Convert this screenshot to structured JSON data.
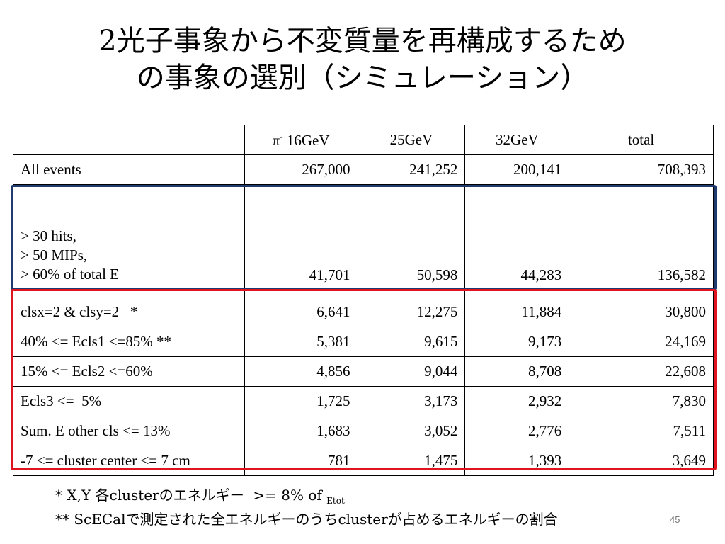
{
  "title": {
    "line1": "2光子事象から不変質量を再構成するため",
    "line2": "の事象の選別（シミュレーション）"
  },
  "table": {
    "headers": [
      "",
      "π",
      "16GeV",
      "25GeV",
      "32GeV",
      "total"
    ],
    "header_pi_sup": "-",
    "rows": [
      {
        "label": "All events",
        "values": [
          "267,000",
          "241,252",
          "200,141",
          "708,393"
        ]
      },
      {
        "label_lines": [
          "> 30 hits,",
          "> 50 MIPs,",
          "> 60% of  total E"
        ],
        "values": [
          "41,701",
          "50,598",
          "44,283",
          "136,582"
        ]
      },
      {
        "label": "clsx=2 & clsy=2   *",
        "values": [
          "6,641",
          "12,275",
          "11,884",
          "30,800"
        ]
      },
      {
        "label": "40% <= Ecls1 <=85% **",
        "values": [
          "5,381",
          "9,615",
          "9,173",
          "24,169"
        ]
      },
      {
        "label": "15% <= Ecls2 <=60%",
        "values": [
          "4,856",
          "9,044",
          "8,708",
          "22,608"
        ]
      },
      {
        "label": "Ecls3 <=  5%",
        "values": [
          "1,725",
          "3,173",
          "2,932",
          "7,830"
        ]
      },
      {
        "label": "Sum. E other cls <= 13%",
        "values": [
          "1,683",
          "3,052",
          "2,776",
          "7,511"
        ]
      },
      {
        "label": "-7 <= cluster center <= 7 cm",
        "values": [
          "781",
          "1,475",
          "1,393",
          "3,649"
        ]
      }
    ]
  },
  "highlight_colors": {
    "blue_box": "#1f3a6e",
    "red_box": "#e0141e"
  },
  "footnotes": {
    "line1_main": "* X,Y 各clusterのエネルギー  >= 8% of ",
    "line1_sub": "Etot",
    "line2": "** ScECalで測定された全エネルギーのうちclusterが占めるエネルギーの割合"
  },
  "page_number": "45"
}
